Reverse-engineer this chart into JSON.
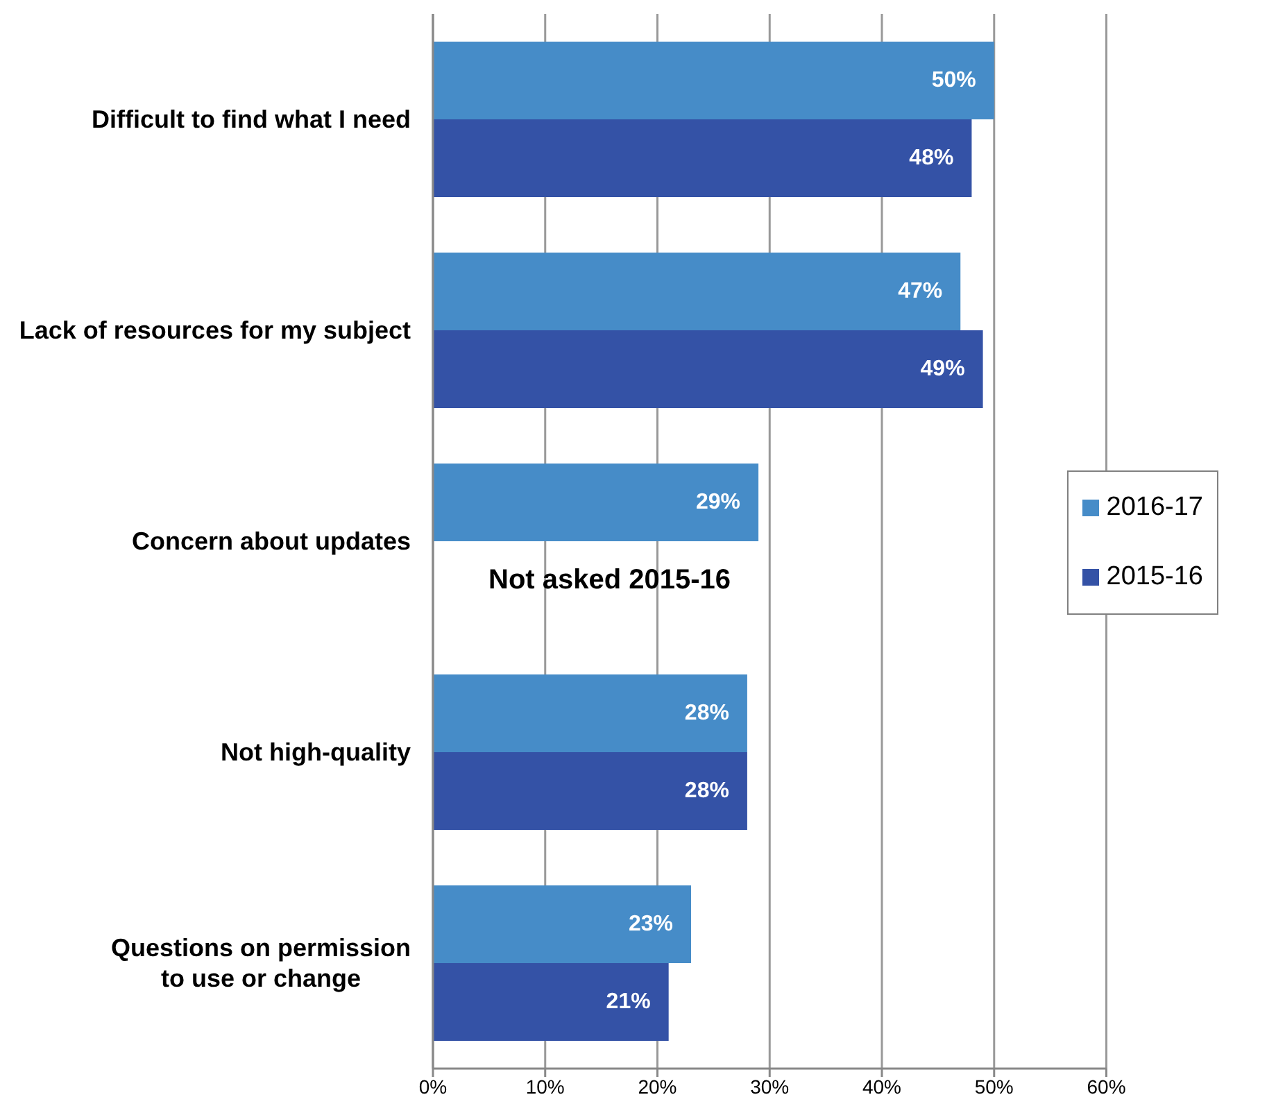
{
  "chart_data": {
    "type": "bar",
    "orientation": "horizontal",
    "categories": [
      "Difficult to find what I need",
      "Lack of resources for my subject",
      "Concern about updates",
      "Not high-quality",
      "Questions on permission to use or change"
    ],
    "series": [
      {
        "name": "2016-17",
        "color": "#468cc8",
        "values": [
          50,
          47,
          29,
          28,
          23
        ],
        "value_labels": [
          "50%",
          "47%",
          "29%",
          "28%",
          "23%"
        ]
      },
      {
        "name": "2015-16",
        "color": "#3452a6",
        "values": [
          48,
          49,
          null,
          28,
          21
        ],
        "value_labels": [
          "48%",
          "49%",
          null,
          "28%",
          "21%"
        ]
      }
    ],
    "xlim": [
      0,
      60
    ],
    "xticks": [
      {
        "value": 0,
        "label": "0%"
      },
      {
        "value": 10,
        "label": "10%"
      },
      {
        "value": 20,
        "label": "20%"
      },
      {
        "value": 30,
        "label": "30%"
      },
      {
        "value": 40,
        "label": "40%"
      },
      {
        "value": 50,
        "label": "50%"
      },
      {
        "value": 60,
        "label": "60%"
      }
    ],
    "grid": "x",
    "legend": "right",
    "annotations": [
      "Not asked 2015-16"
    ]
  }
}
